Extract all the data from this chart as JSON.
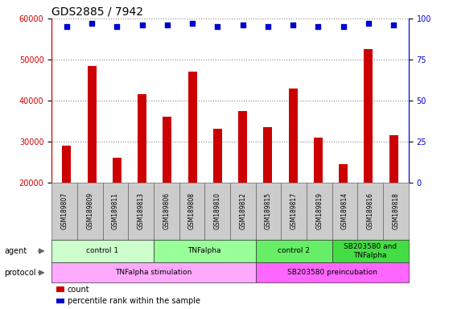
{
  "title": "GDS2885 / 7942",
  "samples": [
    "GSM189807",
    "GSM189809",
    "GSM189811",
    "GSM189813",
    "GSM189806",
    "GSM189808",
    "GSM189810",
    "GSM189812",
    "GSM189815",
    "GSM189817",
    "GSM189819",
    "GSM189814",
    "GSM189816",
    "GSM189818"
  ],
  "counts": [
    29000,
    48500,
    26000,
    41500,
    36000,
    47000,
    33000,
    37500,
    33500,
    43000,
    31000,
    24500,
    52500,
    31500
  ],
  "percentile_ranks": [
    95,
    97,
    95,
    96,
    96,
    97,
    95,
    96,
    95,
    96,
    95,
    95,
    97,
    96
  ],
  "bar_color": "#cc0000",
  "dot_color": "#0000cc",
  "ylim_left": [
    20000,
    60000
  ],
  "ylim_right": [
    0,
    100
  ],
  "yticks_left": [
    20000,
    30000,
    40000,
    50000,
    60000
  ],
  "yticks_right": [
    0,
    25,
    50,
    75,
    100
  ],
  "agent_groups": [
    {
      "label": "control 1",
      "start": 0,
      "end": 4,
      "color": "#ccffcc"
    },
    {
      "label": "TNFalpha",
      "start": 4,
      "end": 8,
      "color": "#99ff99"
    },
    {
      "label": "control 2",
      "start": 8,
      "end": 11,
      "color": "#66ee66"
    },
    {
      "label": "SB203580 and\nTNFalpha",
      "start": 11,
      "end": 14,
      "color": "#44dd44"
    }
  ],
  "protocol_groups": [
    {
      "label": "TNFalpha stimulation",
      "start": 0,
      "end": 8,
      "color": "#ffaaff"
    },
    {
      "label": "SB203580 preincubation",
      "start": 8,
      "end": 14,
      "color": "#ff66ff"
    }
  ],
  "legend_items": [
    {
      "color": "#cc0000",
      "label": "count"
    },
    {
      "color": "#0000cc",
      "label": "percentile rank within the sample"
    }
  ],
  "grid_color": "#888888",
  "background_color": "#ffffff",
  "tick_fontsize": 7,
  "title_fontsize": 10,
  "sample_bg": "#cccccc"
}
